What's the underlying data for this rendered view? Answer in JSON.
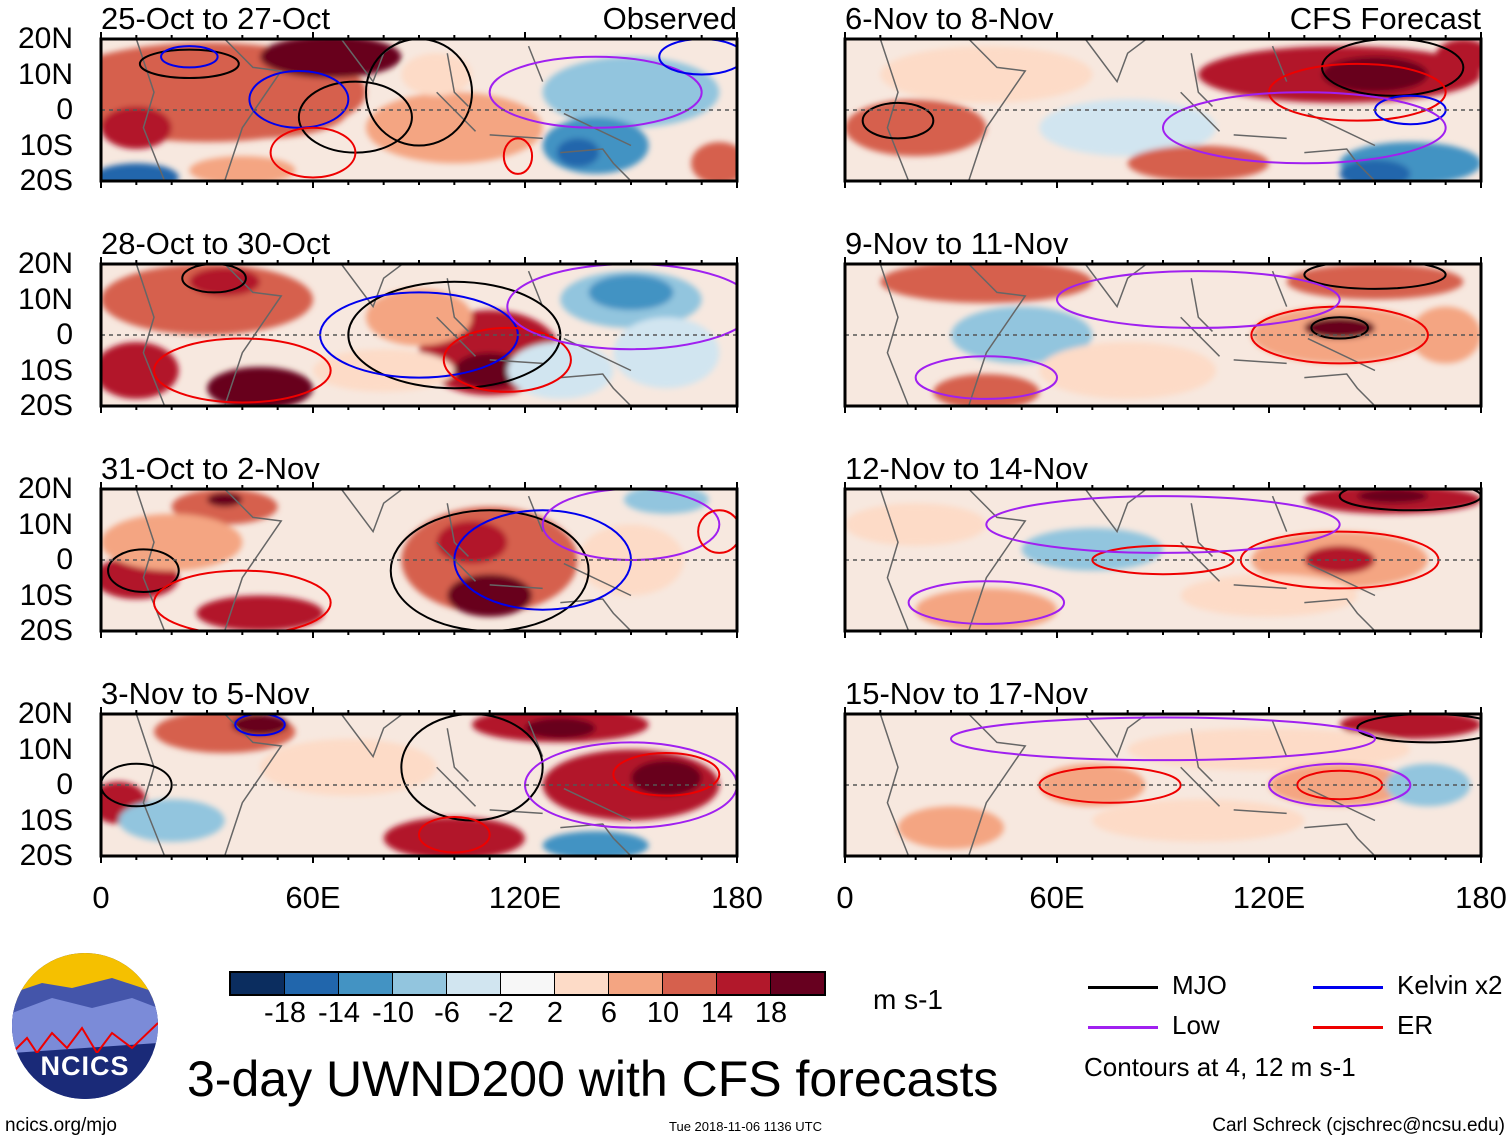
{
  "title": "3-day UWND200 with CFS forecasts",
  "units": "m s-1",
  "footer": {
    "left": "ncics.org/mjo",
    "center": "Tue 2018-11-06 1136 UTC",
    "right": "Carl Schreck (cjschrec@ncsu.edu)"
  },
  "logo_text": "NCICS",
  "colorbar": {
    "colors": [
      "#0b2d5f",
      "#2166ac",
      "#4393c3",
      "#92c5de",
      "#d1e5f0",
      "#f7f7f7",
      "#fddbc7",
      "#f4a582",
      "#d6604d",
      "#b2182b",
      "#67001f"
    ],
    "labels": [
      "-18",
      "-14",
      "-10",
      "-6",
      "-2",
      "2",
      "6",
      "10",
      "14",
      "18"
    ]
  },
  "legend": {
    "items": [
      {
        "label": "MJO",
        "color": "#000000"
      },
      {
        "label": "Kelvin x2",
        "color": "#0000ee"
      },
      {
        "label": "Low",
        "color": "#a020f0"
      },
      {
        "label": "ER",
        "color": "#ee0000"
      }
    ],
    "note": "Contours at 4, 12 m s-1"
  },
  "axes": {
    "lat_labels": [
      "20N",
      "10N",
      "0",
      "10S",
      "20S"
    ],
    "lon_labels": [
      "0",
      "60E",
      "120E",
      "180"
    ]
  },
  "panels": [
    {
      "title": "25-Oct to 27-Oct",
      "label": "Observed",
      "col": 0,
      "row": 0,
      "blobs": [
        [
          30,
          5,
          45,
          14,
          8
        ],
        [
          65,
          15,
          20,
          6,
          10
        ],
        [
          60,
          17,
          8,
          3,
          10
        ],
        [
          45,
          0,
          25,
          8,
          8
        ],
        [
          10,
          -5,
          10,
          6,
          9
        ],
        [
          100,
          -5,
          25,
          10,
          7
        ],
        [
          150,
          5,
          25,
          10,
          3
        ],
        [
          140,
          -10,
          15,
          8,
          2
        ],
        [
          135,
          -12,
          6,
          4,
          1
        ],
        [
          10,
          -19,
          12,
          4,
          1
        ],
        [
          40,
          -17,
          15,
          4,
          7
        ],
        [
          175,
          -15,
          8,
          6,
          8
        ],
        [
          95,
          10,
          10,
          6,
          6
        ]
      ],
      "contours": [
        [
          25,
          13,
          14,
          4,
          "#000"
        ],
        [
          72,
          -2,
          16,
          10,
          "#000"
        ],
        [
          90,
          5,
          15,
          15,
          "#000"
        ],
        [
          56,
          3,
          14,
          8,
          "#0000ee"
        ],
        [
          25,
          15,
          8,
          3,
          "#0000ee"
        ],
        [
          60,
          -12,
          12,
          7,
          "#e00"
        ],
        [
          118,
          -13,
          4,
          5,
          "#e00"
        ],
        [
          140,
          5,
          30,
          10,
          "#a020f0"
        ],
        [
          170,
          15,
          12,
          5,
          "#0000ee"
        ]
      ]
    },
    {
      "title": "28-Oct to 30-Oct",
      "label": "",
      "col": 0,
      "row": 1,
      "blobs": [
        [
          30,
          10,
          30,
          10,
          8
        ],
        [
          35,
          15,
          10,
          4,
          9
        ],
        [
          10,
          -10,
          12,
          8,
          9
        ],
        [
          45,
          -15,
          15,
          6,
          10
        ],
        [
          50,
          -17,
          8,
          3,
          10
        ],
        [
          110,
          -5,
          20,
          12,
          9
        ],
        [
          110,
          -10,
          10,
          5,
          10
        ],
        [
          90,
          5,
          15,
          8,
          7
        ],
        [
          150,
          10,
          20,
          8,
          3
        ],
        [
          150,
          12,
          12,
          5,
          2
        ],
        [
          130,
          -10,
          15,
          8,
          4
        ],
        [
          160,
          -5,
          15,
          10,
          4
        ],
        [
          80,
          -10,
          20,
          6,
          6
        ]
      ],
      "contours": [
        [
          32,
          16,
          9,
          4,
          "#000"
        ],
        [
          100,
          0,
          30,
          15,
          "#000"
        ],
        [
          90,
          0,
          28,
          12,
          "#0000ee"
        ],
        [
          40,
          -10,
          25,
          9,
          "#e00"
        ],
        [
          115,
          -7,
          18,
          9,
          "#e00"
        ],
        [
          150,
          8,
          35,
          12,
          "#a020f0"
        ]
      ]
    },
    {
      "title": "31-Oct to 2-Nov",
      "label": "",
      "col": 0,
      "row": 2,
      "blobs": [
        [
          35,
          15,
          15,
          5,
          8
        ],
        [
          35,
          17,
          5,
          2,
          10
        ],
        [
          10,
          -5,
          12,
          6,
          9
        ],
        [
          45,
          -15,
          18,
          5,
          9
        ],
        [
          110,
          0,
          25,
          15,
          8
        ],
        [
          110,
          -10,
          12,
          6,
          10
        ],
        [
          105,
          5,
          10,
          6,
          9
        ],
        [
          160,
          17,
          12,
          4,
          3
        ],
        [
          150,
          0,
          15,
          10,
          6
        ],
        [
          20,
          5,
          20,
          8,
          7
        ]
      ],
      "contours": [
        [
          12,
          -3,
          10,
          6,
          "#000"
        ],
        [
          110,
          -3,
          28,
          17,
          "#000"
        ],
        [
          125,
          0,
          25,
          14,
          "#0000ee"
        ],
        [
          40,
          -12,
          25,
          9,
          "#e00"
        ],
        [
          150,
          10,
          25,
          10,
          "#a020f0"
        ],
        [
          175,
          8,
          6,
          6,
          "#e00"
        ]
      ]
    },
    {
      "title": "3-Nov to 5-Nov",
      "label": "",
      "col": 0,
      "row": 3,
      "blobs": [
        [
          35,
          15,
          20,
          6,
          8
        ],
        [
          45,
          17,
          8,
          3,
          10
        ],
        [
          130,
          17,
          25,
          5,
          9
        ],
        [
          130,
          16,
          10,
          3,
          10
        ],
        [
          150,
          0,
          25,
          10,
          9
        ],
        [
          160,
          2,
          10,
          5,
          10
        ],
        [
          5,
          -5,
          8,
          6,
          9
        ],
        [
          100,
          -15,
          20,
          6,
          9
        ],
        [
          70,
          5,
          25,
          8,
          6
        ],
        [
          140,
          -17,
          15,
          4,
          2
        ],
        [
          20,
          -10,
          15,
          6,
          3
        ]
      ],
      "contours": [
        [
          10,
          0,
          10,
          6,
          "#000"
        ],
        [
          105,
          5,
          20,
          15,
          "#000"
        ],
        [
          45,
          17,
          7,
          3,
          "#0000ee"
        ],
        [
          100,
          -14,
          10,
          5,
          "#e00"
        ],
        [
          160,
          3,
          15,
          6,
          "#e00"
        ],
        [
          150,
          0,
          30,
          12,
          "#a020f0"
        ]
      ]
    },
    {
      "title": "6-Nov to 8-Nov",
      "label": "CFS Forecast",
      "col": 1,
      "row": 0,
      "blobs": [
        [
          140,
          10,
          40,
          8,
          9
        ],
        [
          150,
          10,
          15,
          5,
          10
        ],
        [
          20,
          -5,
          20,
          8,
          8
        ],
        [
          40,
          10,
          30,
          8,
          6
        ],
        [
          80,
          -5,
          25,
          8,
          4
        ],
        [
          160,
          -15,
          20,
          6,
          2
        ],
        [
          150,
          -18,
          10,
          4,
          1
        ],
        [
          100,
          -15,
          20,
          5,
          8
        ],
        [
          175,
          15,
          8,
          5,
          9
        ]
      ],
      "contours": [
        [
          15,
          -3,
          10,
          5,
          "#000"
        ],
        [
          155,
          12,
          20,
          8,
          "#000"
        ],
        [
          145,
          5,
          25,
          8,
          "#e00"
        ],
        [
          160,
          0,
          10,
          4,
          "#0000ee"
        ],
        [
          130,
          -5,
          40,
          10,
          "#a020f0"
        ]
      ]
    },
    {
      "title": "9-Nov to 11-Nov",
      "label": "",
      "col": 1,
      "row": 1,
      "blobs": [
        [
          40,
          15,
          30,
          6,
          8
        ],
        [
          140,
          0,
          25,
          8,
          7
        ],
        [
          140,
          2,
          10,
          3,
          10
        ],
        [
          150,
          15,
          25,
          5,
          8
        ],
        [
          50,
          0,
          20,
          8,
          3
        ],
        [
          40,
          -16,
          15,
          5,
          8
        ],
        [
          80,
          -10,
          25,
          8,
          6
        ],
        [
          170,
          0,
          10,
          8,
          7
        ]
      ],
      "contours": [
        [
          140,
          0,
          25,
          8,
          "#e00"
        ],
        [
          140,
          2,
          8,
          3,
          "#000"
        ],
        [
          150,
          17,
          20,
          4,
          "#000"
        ],
        [
          100,
          10,
          40,
          8,
          "#a020f0"
        ],
        [
          40,
          -12,
          20,
          6,
          "#a020f0"
        ]
      ]
    },
    {
      "title": "12-Nov to 14-Nov",
      "label": "",
      "col": 1,
      "row": 2,
      "blobs": [
        [
          155,
          17,
          25,
          4,
          9
        ],
        [
          155,
          18,
          10,
          2,
          10
        ],
        [
          140,
          0,
          25,
          8,
          7
        ],
        [
          140,
          0,
          10,
          4,
          9
        ],
        [
          70,
          3,
          20,
          6,
          3
        ],
        [
          40,
          -14,
          20,
          6,
          7
        ],
        [
          120,
          -10,
          25,
          6,
          6
        ],
        [
          20,
          10,
          20,
          6,
          6
        ]
      ],
      "contours": [
        [
          140,
          0,
          28,
          8,
          "#e00"
        ],
        [
          90,
          0,
          20,
          4,
          "#e00"
        ],
        [
          160,
          18,
          20,
          4,
          "#000"
        ],
        [
          40,
          -12,
          22,
          6,
          "#a020f0"
        ],
        [
          90,
          10,
          50,
          8,
          "#a020f0"
        ]
      ]
    },
    {
      "title": "15-Nov to 17-Nov",
      "label": "",
      "col": 1,
      "row": 3,
      "blobs": [
        [
          160,
          17,
          20,
          4,
          9
        ],
        [
          120,
          10,
          40,
          6,
          6
        ],
        [
          140,
          0,
          20,
          6,
          7
        ],
        [
          70,
          0,
          15,
          6,
          7
        ],
        [
          30,
          -12,
          15,
          6,
          7
        ],
        [
          100,
          -10,
          30,
          6,
          6
        ],
        [
          165,
          0,
          12,
          6,
          3
        ]
      ],
      "contours": [
        [
          75,
          0,
          20,
          5,
          "#e00"
        ],
        [
          140,
          0,
          12,
          4,
          "#e00"
        ],
        [
          165,
          16,
          20,
          4,
          "#000"
        ],
        [
          140,
          0,
          20,
          6,
          "#a020f0"
        ],
        [
          90,
          13,
          60,
          6,
          "#a020f0"
        ]
      ]
    }
  ]
}
